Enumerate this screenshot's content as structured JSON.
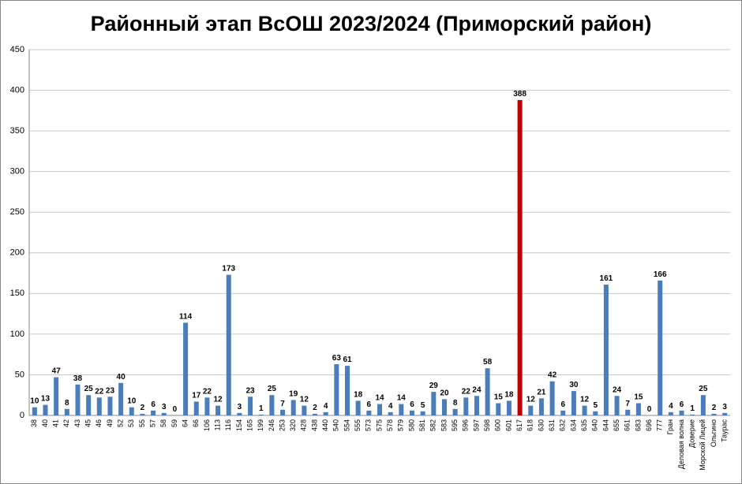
{
  "chart_data": {
    "type": "bar",
    "title": "Районный этап ВсОШ 2023/2024 (Приморский район)",
    "categories": [
      "38",
      "40",
      "41",
      "42",
      "43",
      "45",
      "46",
      "49",
      "52",
      "53",
      "55",
      "57",
      "58",
      "59",
      "64",
      "66",
      "106",
      "113",
      "116",
      "154",
      "165",
      "199",
      "246",
      "253",
      "320",
      "428",
      "438",
      "440",
      "540",
      "554",
      "555",
      "573",
      "575",
      "578",
      "579",
      "580",
      "581",
      "582",
      "583",
      "595",
      "596",
      "597",
      "598",
      "600",
      "601",
      "617",
      "618",
      "630",
      "631",
      "632",
      "634",
      "635",
      "640",
      "644",
      "655",
      "661",
      "683",
      "696",
      "777",
      "Гран",
      "Деловая волна",
      "Доверие",
      "Морской Лицей",
      "Ольгино",
      "Таурас"
    ],
    "values": [
      10,
      13,
      47,
      8,
      38,
      25,
      22,
      23,
      40,
      10,
      2,
      6,
      3,
      0,
      114,
      17,
      22,
      12,
      173,
      3,
      23,
      1,
      25,
      7,
      19,
      12,
      2,
      4,
      63,
      61,
      18,
      6,
      14,
      4,
      14,
      6,
      5,
      29,
      20,
      8,
      22,
      24,
      58,
      15,
      18,
      388,
      12,
      21,
      42,
      6,
      30,
      12,
      5,
      161,
      24,
      7,
      15,
      0,
      166,
      4,
      6,
      1,
      25,
      2,
      3
    ],
    "color": "#4a7ebb",
    "highlight": {
      "category": "617",
      "color": "#c00000"
    },
    "ylim": [
      0,
      450
    ],
    "yticks": [
      0,
      50,
      100,
      150,
      200,
      250,
      300,
      350,
      400,
      450
    ],
    "grid": true,
    "data_labels": true
  }
}
